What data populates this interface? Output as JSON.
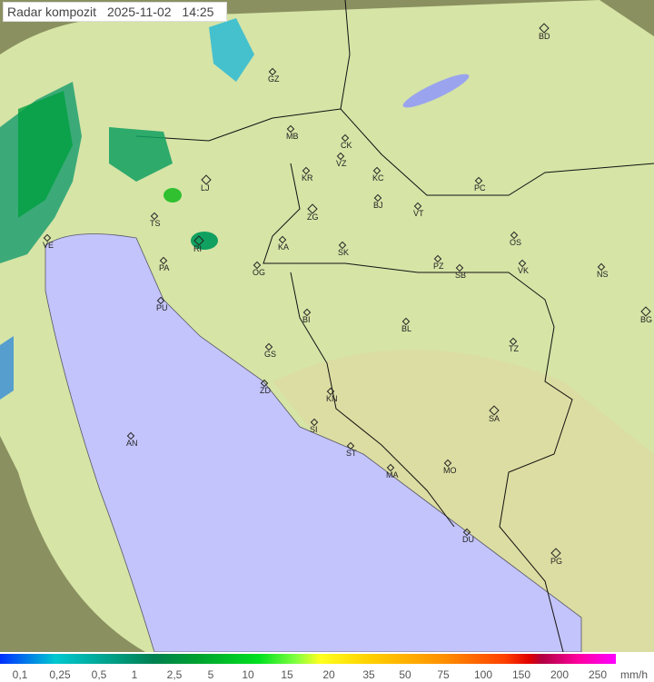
{
  "header": {
    "title": "Radar kompozit",
    "date": "2025-11-02",
    "time": "14:25"
  },
  "cities": [
    "BD",
    "GZ",
    "MB",
    "CK",
    "VZ",
    "KR",
    "KC",
    "LJ",
    "PC",
    "BJ",
    "VT",
    "ZG",
    "TS",
    "VE",
    "KA",
    "SK",
    "RI",
    "OS",
    "PA",
    "PZ",
    "SB",
    "VK",
    "OG",
    "NS",
    "PU",
    "BI",
    "BG",
    "BL",
    "TZ",
    "GS",
    "ZD",
    "KN",
    "SA",
    "SI",
    "AN",
    "ST",
    "MA",
    "MO",
    "DU",
    "PG"
  ],
  "legend": {
    "ticks": [
      "0,1",
      "0,25",
      "0,5",
      "1",
      "2,5",
      "5",
      "10",
      "15",
      "20",
      "35",
      "50",
      "75",
      "100",
      "150",
      "200",
      "250"
    ],
    "unit": "mm/h"
  },
  "colors": {
    "sea": "#c4c4fc",
    "land": "#d9e6a8",
    "outside_range": "#8a9060",
    "precip_low": "#20b0d0",
    "precip_mid": "#00a040"
  }
}
